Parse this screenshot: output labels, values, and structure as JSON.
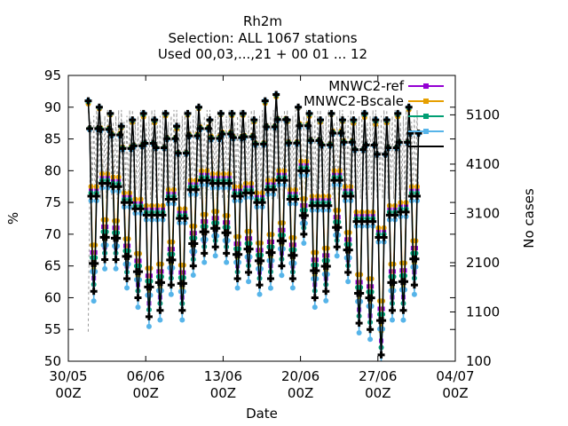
{
  "chart_data": {
    "type": "line",
    "title": "Rh2m",
    "subtitle_lines": [
      "Selection: ALL    1067 stations",
      "Used 00,03,...,21 + 00 01 ... 12"
    ],
    "xlabel": "Date",
    "ylabel": "%",
    "y2label": "No cases",
    "x_range_days": [
      0,
      35
    ],
    "x_ticks": [
      {
        "day": 0,
        "label": "30/05",
        "sub": "00Z"
      },
      {
        "day": 7,
        "label": "06/06",
        "sub": "00Z"
      },
      {
        "day": 14,
        "label": "13/06",
        "sub": "00Z"
      },
      {
        "day": 21,
        "label": "20/06",
        "sub": "00Z"
      },
      {
        "day": 28,
        "label": "27/06",
        "sub": "00Z"
      },
      {
        "day": 35,
        "label": "04/07",
        "sub": "00Z"
      }
    ],
    "ylim": [
      50,
      95
    ],
    "y_ticks": [
      50,
      55,
      60,
      65,
      70,
      75,
      80,
      85,
      90,
      95
    ],
    "y2lim": [
      100,
      5900
    ],
    "y2_ticks": [
      100,
      1100,
      2100,
      3100,
      4100,
      5100
    ],
    "daily_cycle": {
      "days": [
        2.3,
        3.3,
        4.3,
        5.3,
        6.3,
        7.3,
        8.3,
        9.3,
        10.3,
        11.3,
        12.3,
        13.3,
        14.3,
        15.3,
        16.3,
        17.3,
        18.3,
        19.3,
        20.3,
        21.3,
        22.3,
        23.3,
        24.3,
        25.3,
        26.3,
        27.3,
        28.3,
        29.3,
        30.3,
        31.3
      ],
      "obs_min": [
        61,
        66,
        66,
        63,
        60,
        57,
        58,
        62,
        58,
        65,
        67,
        68,
        67,
        63,
        64,
        62,
        63,
        65,
        63,
        70,
        60,
        61,
        68,
        64,
        56,
        55,
        51,
        58,
        58,
        62
      ],
      "obs_max": [
        91,
        90,
        89,
        87,
        88,
        89,
        88,
        89,
        87,
        89,
        90,
        88,
        89,
        89,
        89,
        88,
        91,
        92,
        88,
        90,
        89,
        88,
        89,
        88,
        88,
        89,
        88,
        88,
        89,
        90
      ]
    },
    "series": [
      {
        "name": "MNWC2-ref",
        "color": "#9400d3",
        "marker": "square"
      },
      {
        "name": "MNWC2-Bscale",
        "color": "#e69f00",
        "marker": "circle"
      },
      {
        "name": "",
        "color": "#009e73",
        "marker": "triangle"
      },
      {
        "name": "",
        "color": "#56b4e9",
        "marker": "diamond"
      },
      {
        "name": "",
        "color": "#000000",
        "marker": "plus"
      }
    ],
    "cases_series": {
      "name": "No cases",
      "color": "#999999",
      "style": "dashed",
      "range": [
        3300,
        5200
      ],
      "start": 700
    }
  }
}
